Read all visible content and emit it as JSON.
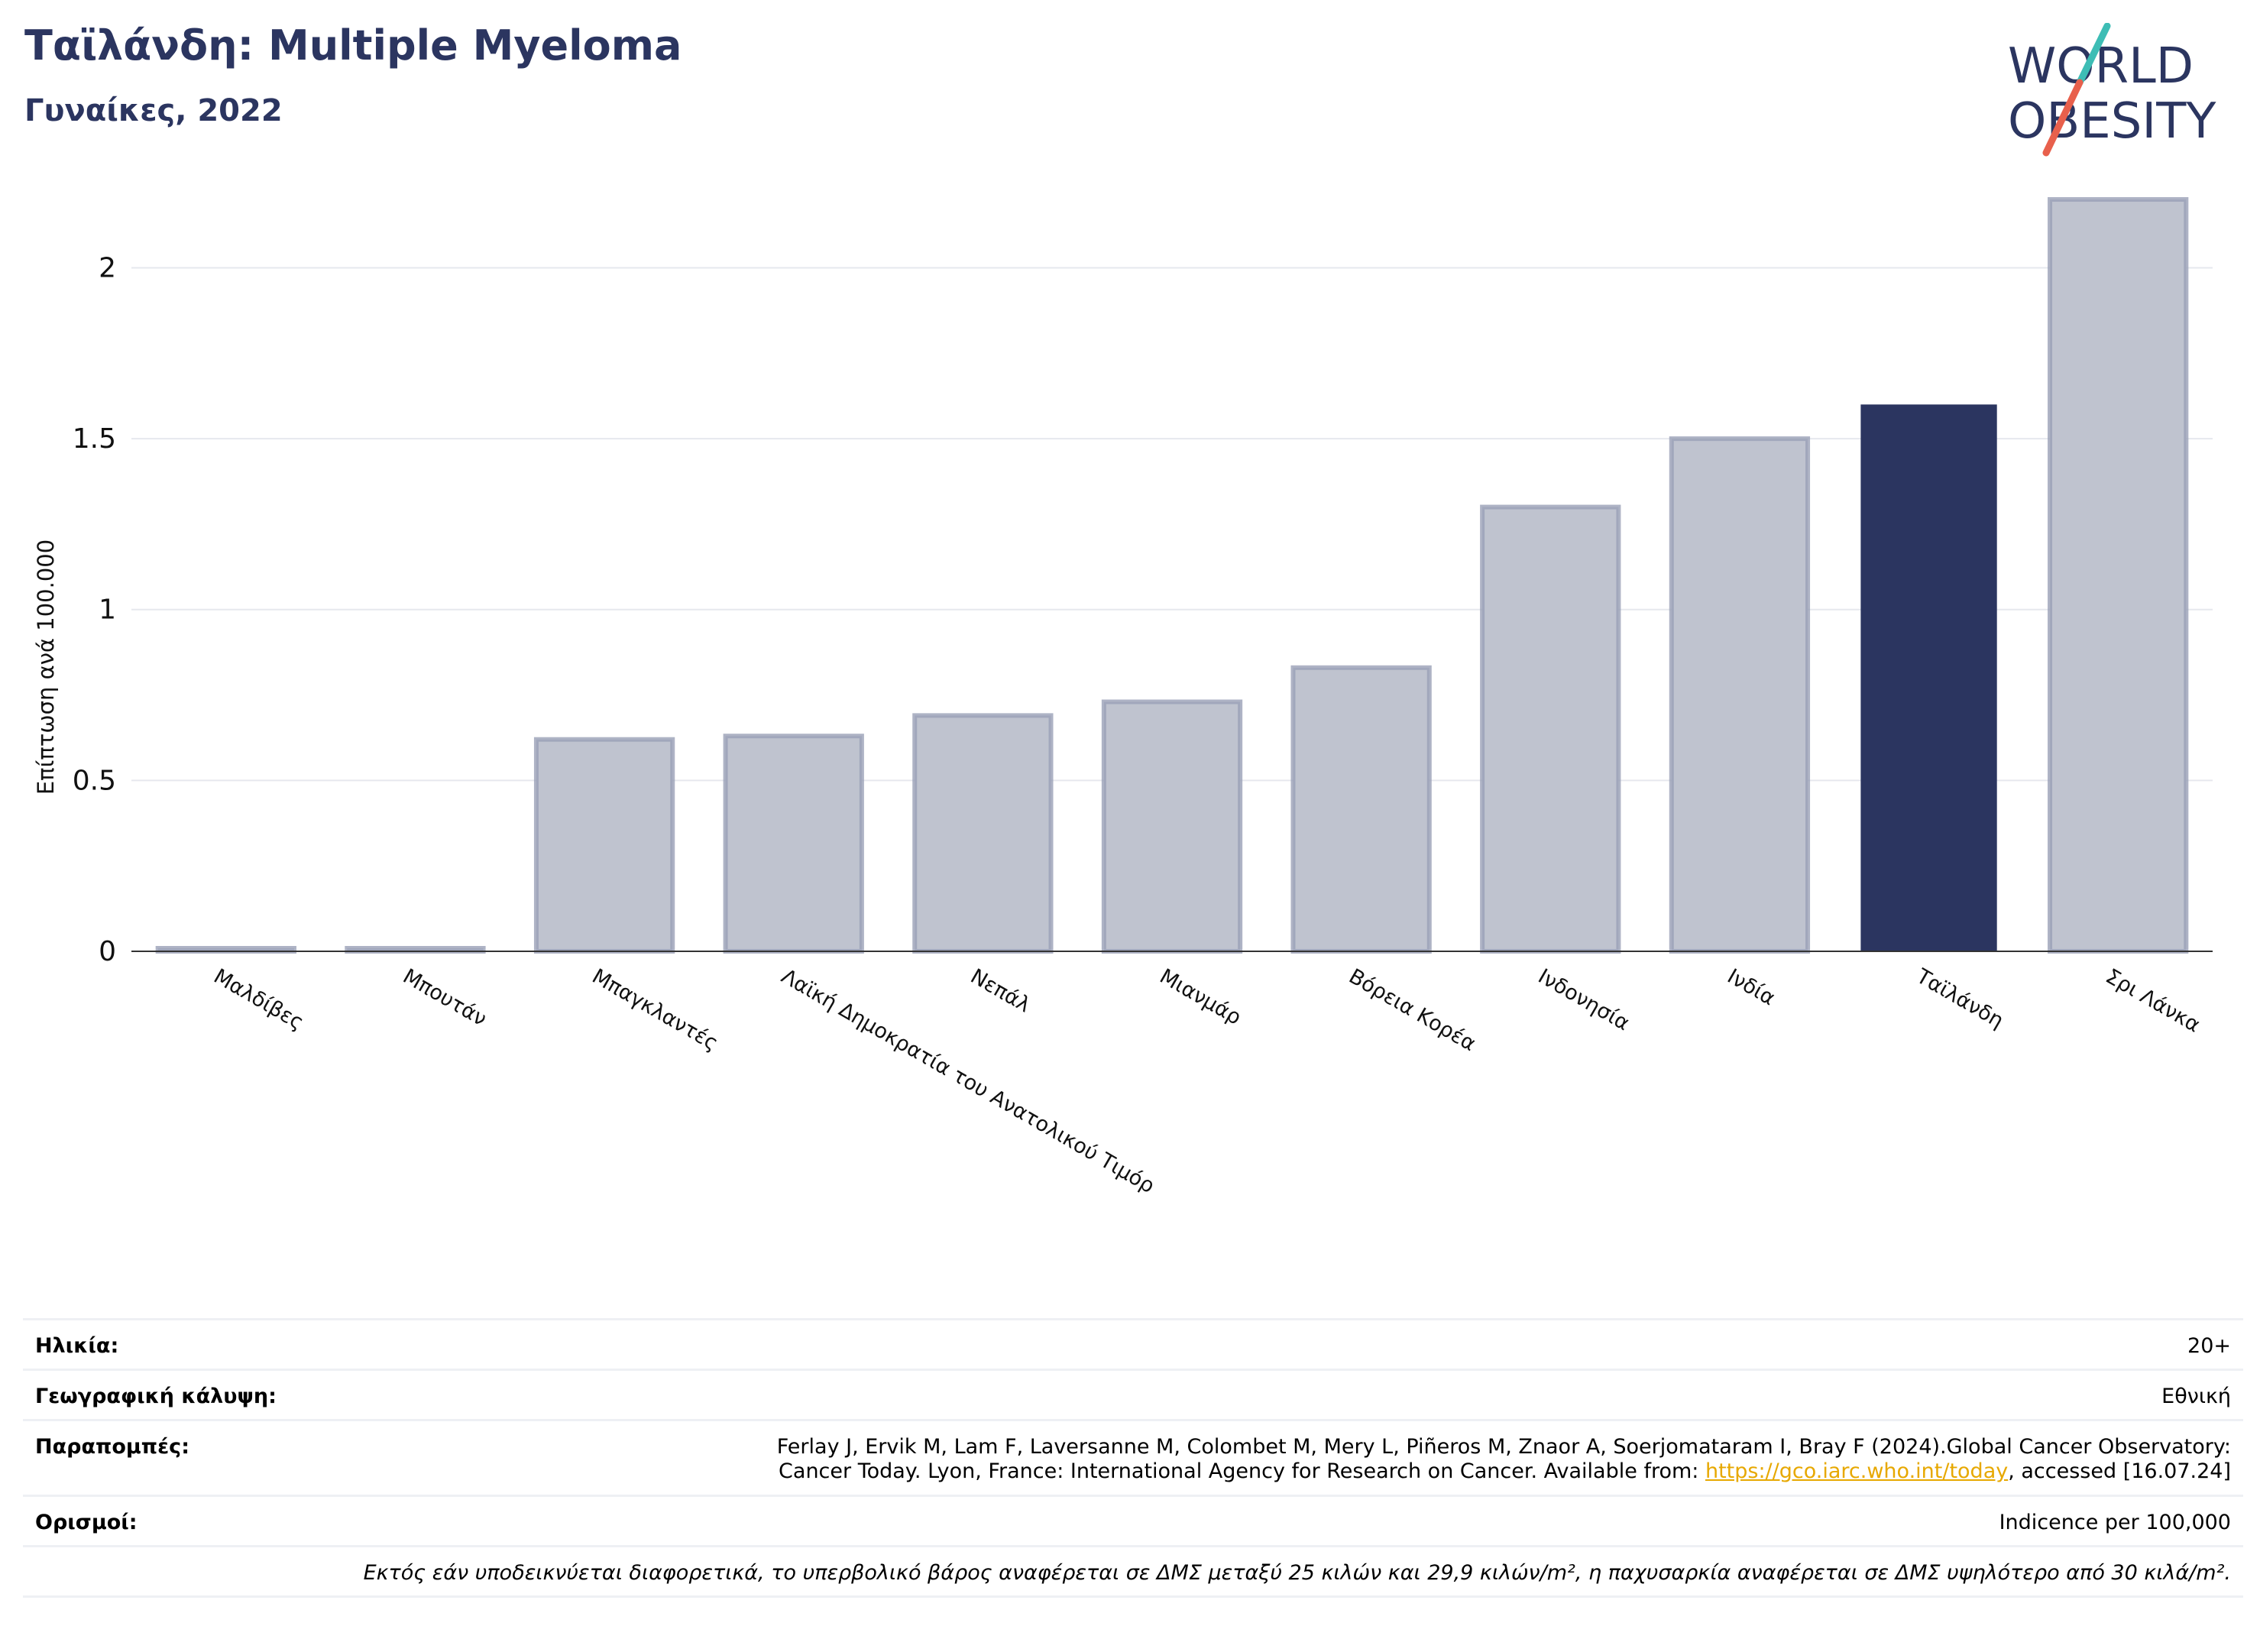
{
  "header": {
    "title": "Ταϊλάνδη: Multiple Myeloma",
    "subtitle": "Γυναίκες, 2022"
  },
  "logo": {
    "line1": "WORLD",
    "line2": "OBESITY",
    "icon": "world-obesity-logo"
  },
  "colors": {
    "highlight": "#2b3560",
    "bar": "#bfc3cf",
    "bar_edge": "#9aa0b6",
    "title": "#2b3560",
    "link": "#e7a800",
    "logo_teal": "#3dbdb5",
    "logo_red": "#e8604c"
  },
  "chart_data": {
    "type": "bar",
    "title": "Ταϊλάνδη: Multiple Myeloma",
    "subtitle": "Γυναίκες, 2022",
    "xlabel": "",
    "ylabel": "Επίπτωση ανά 100.000",
    "categories": [
      "Μαλδίβες",
      "Μπουτάν",
      "Μπαγκλαντές",
      "Λαϊκή Δημοκρατία του Ανατολικού Τιμόρ",
      "Νεπάλ",
      "Μιανμάρ",
      "Βόρεια Κορέα",
      "Ινδονησία",
      "Ινδία",
      "Ταϊλάνδη",
      "Σρι Λάνκα"
    ],
    "values": [
      0.0,
      0.0,
      0.62,
      0.63,
      0.69,
      0.73,
      0.83,
      1.3,
      1.5,
      1.6,
      2.2
    ],
    "highlight": "Ταϊλάνδη",
    "ylim": [
      0,
      2.2
    ],
    "yticks": [
      0,
      0.5,
      1,
      1.5,
      2
    ],
    "ytick_labels": [
      "0",
      "0.5",
      "1",
      "1.5",
      "2"
    ],
    "grid": true,
    "legend": "none"
  },
  "info": {
    "age_label": "Ηλικία:",
    "age_value": "20+",
    "coverage_label": "Γεωγραφική κάλυψη:",
    "coverage_value": "Εθνική",
    "refs_label": "Παραπομπές:",
    "refs_line1": "Ferlay J, Ervik M, Lam F, Laversanne M, Colombet M, Mery L, Piñeros M, Znaor A, Soerjomataram I, Bray F (2024).Global Cancer Observatory:",
    "refs_line2_pre": "Cancer Today. Lyon, France: International Agency for Research on Cancer. Available from: ",
    "refs_link": "https://gco.iarc.who.int/today",
    "refs_line2_post": ", accessed [16.07.24]",
    "defs_label": "Ορισμοί:",
    "defs_value": "Indicence per 100,000",
    "note": "Εκτός εάν υποδεικνύεται διαφορετικά, το υπερβολικό βάρος αναφέρεται σε ΔΜΣ μεταξύ 25 κιλών και 29,9 κιλών/m², η παχυσαρκία αναφέρεται σε ΔΜΣ υψηλότερο από 30 κιλά/m²."
  }
}
